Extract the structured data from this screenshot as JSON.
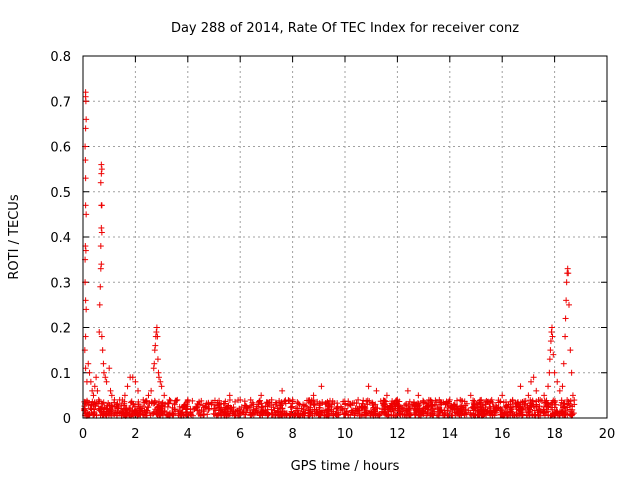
{
  "chart_data": {
    "type": "scatter",
    "title": "Day 288 of 2014, Rate Of TEC Index for receiver conz",
    "xlabel": "GPS time / hours",
    "ylabel": "ROTI / TECUs",
    "xlim": [
      0,
      20
    ],
    "ylim": [
      0,
      0.8
    ],
    "xticks": [
      "0",
      "2",
      "4",
      "6",
      "8",
      "10",
      "12",
      "14",
      "16",
      "18",
      "20"
    ],
    "yticks": [
      "0",
      "0.1",
      "0.2",
      "0.3",
      "0.4",
      "0.5",
      "0.6",
      "0.7",
      "0.8"
    ],
    "grid": true,
    "marker": "+",
    "colors": {
      "marker": "#ee0000",
      "grid": "#a0a0a0",
      "axis": "#000000"
    },
    "series": [
      {
        "name": "ROTI",
        "points": [
          [
            0.05,
            0.02
          ],
          [
            0.08,
            0.35
          ],
          [
            0.1,
            0.72
          ],
          [
            0.1,
            0.71
          ],
          [
            0.11,
            0.7
          ],
          [
            0.12,
            0.66
          ],
          [
            0.1,
            0.64
          ],
          [
            0.08,
            0.6
          ],
          [
            0.09,
            0.57
          ],
          [
            0.1,
            0.53
          ],
          [
            0.1,
            0.47
          ],
          [
            0.12,
            0.45
          ],
          [
            0.09,
            0.38
          ],
          [
            0.11,
            0.37
          ],
          [
            0.08,
            0.3
          ],
          [
            0.1,
            0.26
          ],
          [
            0.12,
            0.24
          ],
          [
            0.1,
            0.18
          ],
          [
            0.07,
            0.15
          ],
          [
            0.1,
            0.11
          ],
          [
            0.15,
            0.08
          ],
          [
            0.2,
            0.12
          ],
          [
            0.25,
            0.1
          ],
          [
            0.3,
            0.08
          ],
          [
            0.35,
            0.06
          ],
          [
            0.4,
            0.05
          ],
          [
            0.45,
            0.07
          ],
          [
            0.5,
            0.09
          ],
          [
            0.55,
            0.06
          ],
          [
            0.6,
            0.04
          ],
          [
            0.62,
            0.19
          ],
          [
            0.64,
            0.25
          ],
          [
            0.66,
            0.29
          ],
          [
            0.68,
            0.33
          ],
          [
            0.7,
            0.34
          ],
          [
            0.68,
            0.38
          ],
          [
            0.7,
            0.42
          ],
          [
            0.72,
            0.41
          ],
          [
            0.7,
            0.47
          ],
          [
            0.72,
            0.47
          ],
          [
            0.68,
            0.52
          ],
          [
            0.7,
            0.54
          ],
          [
            0.72,
            0.55
          ],
          [
            0.7,
            0.56
          ],
          [
            0.72,
            0.18
          ],
          [
            0.75,
            0.15
          ],
          [
            0.78,
            0.12
          ],
          [
            0.8,
            0.1
          ],
          [
            0.85,
            0.09
          ],
          [
            0.9,
            0.08
          ],
          [
            1.0,
            0.11
          ],
          [
            1.05,
            0.06
          ],
          [
            1.1,
            0.05
          ],
          [
            1.2,
            0.04
          ],
          [
            1.3,
            0.03
          ],
          [
            1.4,
            0.04
          ],
          [
            1.6,
            0.05
          ],
          [
            1.7,
            0.07
          ],
          [
            1.8,
            0.09
          ],
          [
            1.9,
            0.09
          ],
          [
            2.0,
            0.08
          ],
          [
            2.1,
            0.06
          ],
          [
            2.3,
            0.04
          ],
          [
            2.5,
            0.05
          ],
          [
            2.6,
            0.06
          ],
          [
            2.7,
            0.11
          ],
          [
            2.72,
            0.12
          ],
          [
            2.74,
            0.15
          ],
          [
            2.76,
            0.16
          ],
          [
            2.78,
            0.18
          ],
          [
            2.8,
            0.19
          ],
          [
            2.82,
            0.2
          ],
          [
            2.84,
            0.18
          ],
          [
            2.86,
            0.13
          ],
          [
            2.88,
            0.1
          ],
          [
            2.9,
            0.09
          ],
          [
            2.95,
            0.08
          ],
          [
            3.0,
            0.07
          ],
          [
            3.1,
            0.05
          ],
          [
            3.3,
            0.04
          ],
          [
            3.6,
            0.04
          ],
          [
            3.9,
            0.03
          ],
          [
            4.0,
            0.04
          ],
          [
            4.4,
            0.03
          ],
          [
            4.8,
            0.03
          ],
          [
            5.2,
            0.03
          ],
          [
            5.6,
            0.05
          ],
          [
            6.0,
            0.04
          ],
          [
            6.4,
            0.04
          ],
          [
            6.8,
            0.05
          ],
          [
            7.2,
            0.04
          ],
          [
            7.6,
            0.06
          ],
          [
            8.0,
            0.04
          ],
          [
            8.4,
            0.03
          ],
          [
            8.8,
            0.05
          ],
          [
            9.1,
            0.07
          ],
          [
            9.5,
            0.03
          ],
          [
            10.0,
            0.03
          ],
          [
            10.5,
            0.04
          ],
          [
            10.9,
            0.07
          ],
          [
            11.2,
            0.06
          ],
          [
            11.6,
            0.05
          ],
          [
            12.0,
            0.04
          ],
          [
            12.4,
            0.06
          ],
          [
            12.8,
            0.05
          ],
          [
            13.2,
            0.04
          ],
          [
            13.6,
            0.04
          ],
          [
            14.0,
            0.04
          ],
          [
            14.4,
            0.04
          ],
          [
            14.8,
            0.05
          ],
          [
            15.2,
            0.04
          ],
          [
            15.6,
            0.04
          ],
          [
            16.0,
            0.05
          ],
          [
            16.4,
            0.04
          ],
          [
            16.7,
            0.07
          ],
          [
            17.0,
            0.05
          ],
          [
            17.1,
            0.08
          ],
          [
            17.2,
            0.09
          ],
          [
            17.3,
            0.06
          ],
          [
            17.6,
            0.05
          ],
          [
            17.75,
            0.07
          ],
          [
            17.8,
            0.1
          ],
          [
            17.82,
            0.13
          ],
          [
            17.84,
            0.15
          ],
          [
            17.86,
            0.17
          ],
          [
            17.88,
            0.19
          ],
          [
            17.9,
            0.2
          ],
          [
            17.92,
            0.18
          ],
          [
            17.95,
            0.14
          ],
          [
            18.0,
            0.1
          ],
          [
            18.1,
            0.08
          ],
          [
            18.2,
            0.06
          ],
          [
            18.3,
            0.07
          ],
          [
            18.35,
            0.12
          ],
          [
            18.4,
            0.18
          ],
          [
            18.42,
            0.22
          ],
          [
            18.44,
            0.26
          ],
          [
            18.46,
            0.3
          ],
          [
            18.48,
            0.32
          ],
          [
            18.5,
            0.33
          ],
          [
            18.52,
            0.32
          ],
          [
            18.55,
            0.25
          ],
          [
            18.6,
            0.15
          ],
          [
            18.65,
            0.1
          ],
          [
            18.7,
            0.05
          ],
          [
            18.75,
            0.03
          ]
        ]
      }
    ]
  }
}
